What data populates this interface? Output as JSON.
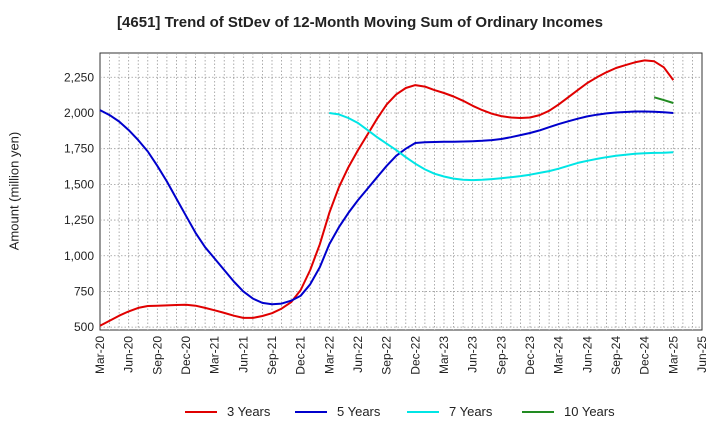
{
  "chart_data": {
    "type": "line",
    "title": "[4651]  Trend of StDev of 12-Month Moving Sum of Ordinary Incomes",
    "xlabel": "",
    "ylabel": "Amount (million yen)",
    "ylim": [
      480,
      2420
    ],
    "yticks": [
      500,
      750,
      1000,
      1250,
      1500,
      1750,
      2000,
      2250
    ],
    "ytick_labels": [
      "500",
      "750",
      "1,000",
      "1,250",
      "1,500",
      "1,750",
      "2,000",
      "2,250"
    ],
    "x_tick_labels": [
      "Mar-20",
      "Jun-20",
      "Sep-20",
      "Dec-20",
      "Mar-21",
      "Jun-21",
      "Sep-21",
      "Dec-21",
      "Mar-22",
      "Jun-22",
      "Sep-22",
      "Dec-22",
      "Mar-23",
      "Jun-23",
      "Sep-23",
      "Dec-23",
      "Mar-24",
      "Jun-24",
      "Sep-24",
      "Dec-24",
      "Mar-25",
      "Jun-25"
    ],
    "grid": true,
    "legend_position": "bottom",
    "series": [
      {
        "name": "3 Years",
        "color": "#e00000",
        "x": [
          "Mar-20",
          "Apr-20",
          "May-20",
          "Jun-20",
          "Jul-20",
          "Aug-20",
          "Sep-20",
          "Oct-20",
          "Nov-20",
          "Dec-20",
          "Jan-21",
          "Feb-21",
          "Mar-21",
          "Apr-21",
          "May-21",
          "Jun-21",
          "Jul-21",
          "Aug-21",
          "Sep-21",
          "Oct-21",
          "Nov-21",
          "Dec-21",
          "Jan-22",
          "Feb-22",
          "Mar-22",
          "Apr-22",
          "May-22",
          "Jun-22",
          "Jul-22",
          "Aug-22",
          "Sep-22",
          "Oct-22",
          "Nov-22",
          "Dec-22",
          "Jan-23",
          "Feb-23",
          "Mar-23",
          "Apr-23",
          "May-23",
          "Jun-23",
          "Jul-23",
          "Aug-23",
          "Sep-23",
          "Oct-23",
          "Nov-23",
          "Dec-23",
          "Jan-24",
          "Feb-24",
          "Mar-24",
          "Apr-24",
          "May-24",
          "Jun-24",
          "Jul-24",
          "Aug-24",
          "Sep-24",
          "Oct-24",
          "Nov-24",
          "Dec-24",
          "Jan-25",
          "Feb-25",
          "Mar-25"
        ],
        "values": [
          510,
          545,
          580,
          610,
          635,
          648,
          650,
          652,
          655,
          657,
          650,
          635,
          618,
          600,
          580,
          565,
          565,
          578,
          598,
          630,
          675,
          760,
          900,
          1080,
          1300,
          1480,
          1620,
          1740,
          1850,
          1960,
          2060,
          2130,
          2175,
          2195,
          2185,
          2160,
          2140,
          2115,
          2085,
          2050,
          2020,
          1995,
          1978,
          1968,
          1965,
          1968,
          1985,
          2015,
          2060,
          2110,
          2160,
          2210,
          2250,
          2285,
          2315,
          2335,
          2355,
          2368,
          2362,
          2320,
          2230
        ]
      },
      {
        "name": "5 Years",
        "color": "#0000cc",
        "x": [
          "Mar-20",
          "Apr-20",
          "May-20",
          "Jun-20",
          "Jul-20",
          "Aug-20",
          "Sep-20",
          "Oct-20",
          "Nov-20",
          "Dec-20",
          "Jan-21",
          "Feb-21",
          "Mar-21",
          "Apr-21",
          "May-21",
          "Jun-21",
          "Jul-21",
          "Aug-21",
          "Sep-21",
          "Oct-21",
          "Nov-21",
          "Dec-21",
          "Jan-22",
          "Feb-22",
          "Mar-22",
          "Apr-22",
          "May-22",
          "Jun-22",
          "Jul-22",
          "Aug-22",
          "Sep-22",
          "Oct-22",
          "Nov-22",
          "Dec-22",
          "Jan-23",
          "Feb-23",
          "Mar-23",
          "Apr-23",
          "May-23",
          "Jun-23",
          "Jul-23",
          "Aug-23",
          "Sep-23",
          "Oct-23",
          "Nov-23",
          "Dec-23",
          "Jan-24",
          "Feb-24",
          "Mar-24",
          "Apr-24",
          "May-24",
          "Jun-24",
          "Jul-24",
          "Aug-24",
          "Sep-24",
          "Oct-24",
          "Nov-24",
          "Dec-24",
          "Jan-25",
          "Feb-25",
          "Mar-25"
        ],
        "values": [
          2020,
          1985,
          1940,
          1880,
          1810,
          1730,
          1630,
          1520,
          1400,
          1280,
          1160,
          1060,
          980,
          900,
          820,
          750,
          700,
          670,
          660,
          665,
          685,
          720,
          800,
          920,
          1080,
          1200,
          1300,
          1390,
          1470,
          1550,
          1630,
          1700,
          1750,
          1790,
          1795,
          1797,
          1798,
          1799,
          1800,
          1802,
          1805,
          1810,
          1818,
          1830,
          1845,
          1860,
          1878,
          1900,
          1922,
          1942,
          1960,
          1976,
          1988,
          1997,
          2003,
          2007,
          2010,
          2010,
          2008,
          2005,
          2000
        ]
      },
      {
        "name": "7 Years",
        "color": "#00e5e5",
        "x": [
          "Mar-22",
          "Apr-22",
          "May-22",
          "Jun-22",
          "Jul-22",
          "Aug-22",
          "Sep-22",
          "Oct-22",
          "Nov-22",
          "Dec-22",
          "Jan-23",
          "Feb-23",
          "Mar-23",
          "Apr-23",
          "May-23",
          "Jun-23",
          "Jul-23",
          "Aug-23",
          "Sep-23",
          "Oct-23",
          "Nov-23",
          "Dec-23",
          "Jan-24",
          "Feb-24",
          "Mar-24",
          "Apr-24",
          "May-24",
          "Jun-24",
          "Jul-24",
          "Aug-24",
          "Sep-24",
          "Oct-24",
          "Nov-24",
          "Dec-24",
          "Jan-25",
          "Feb-25",
          "Mar-25"
        ],
        "values": [
          2000,
          1990,
          1965,
          1930,
          1880,
          1830,
          1785,
          1740,
          1690,
          1645,
          1605,
          1575,
          1555,
          1540,
          1532,
          1530,
          1532,
          1537,
          1543,
          1550,
          1558,
          1568,
          1580,
          1593,
          1610,
          1630,
          1650,
          1665,
          1678,
          1690,
          1700,
          1708,
          1714,
          1718,
          1720,
          1722,
          1725
        ]
      },
      {
        "name": "10 Years",
        "color": "#228b22",
        "x": [
          "Jan-25",
          "Feb-25",
          "Mar-25"
        ],
        "values": [
          2110,
          2090,
          2070
        ]
      }
    ]
  }
}
